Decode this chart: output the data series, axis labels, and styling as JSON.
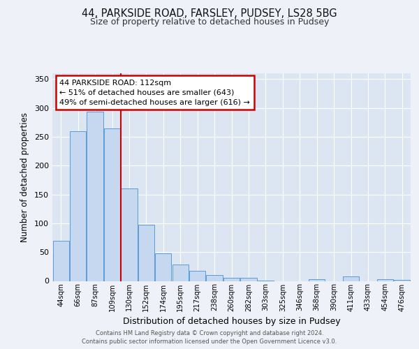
{
  "title1": "44, PARKSIDE ROAD, FARSLEY, PUDSEY, LS28 5BG",
  "title2": "Size of property relative to detached houses in Pudsey",
  "xlabel": "Distribution of detached houses by size in Pudsey",
  "ylabel": "Number of detached properties",
  "bin_labels": [
    "44sqm",
    "66sqm",
    "87sqm",
    "109sqm",
    "130sqm",
    "152sqm",
    "174sqm",
    "195sqm",
    "217sqm",
    "238sqm",
    "260sqm",
    "282sqm",
    "303sqm",
    "325sqm",
    "346sqm",
    "368sqm",
    "390sqm",
    "411sqm",
    "433sqm",
    "454sqm",
    "476sqm"
  ],
  "bar_heights": [
    70,
    260,
    293,
    265,
    160,
    97,
    48,
    28,
    18,
    10,
    5,
    5,
    1,
    0,
    0,
    3,
    0,
    8,
    0,
    3,
    2
  ],
  "bar_color": "#c5d8f0",
  "bar_edge_color": "#5b9bd5",
  "property_line_bin_idx": 3,
  "annotation_line1": "44 PARKSIDE ROAD: 112sqm",
  "annotation_line2": "← 51% of detached houses are smaller (643)",
  "annotation_line3": "49% of semi-detached houses are larger (616) →",
  "annotation_box_edge_color": "#cc0000",
  "ylim": [
    0,
    360
  ],
  "yticks": [
    0,
    50,
    100,
    150,
    200,
    250,
    300,
    350
  ],
  "fig_bg": "#eef2f8",
  "plot_bg": "#dce6f2",
  "footer_line1": "Contains HM Land Registry data © Crown copyright and database right 2024.",
  "footer_line2": "Contains public sector information licensed under the Open Government Licence v3.0."
}
